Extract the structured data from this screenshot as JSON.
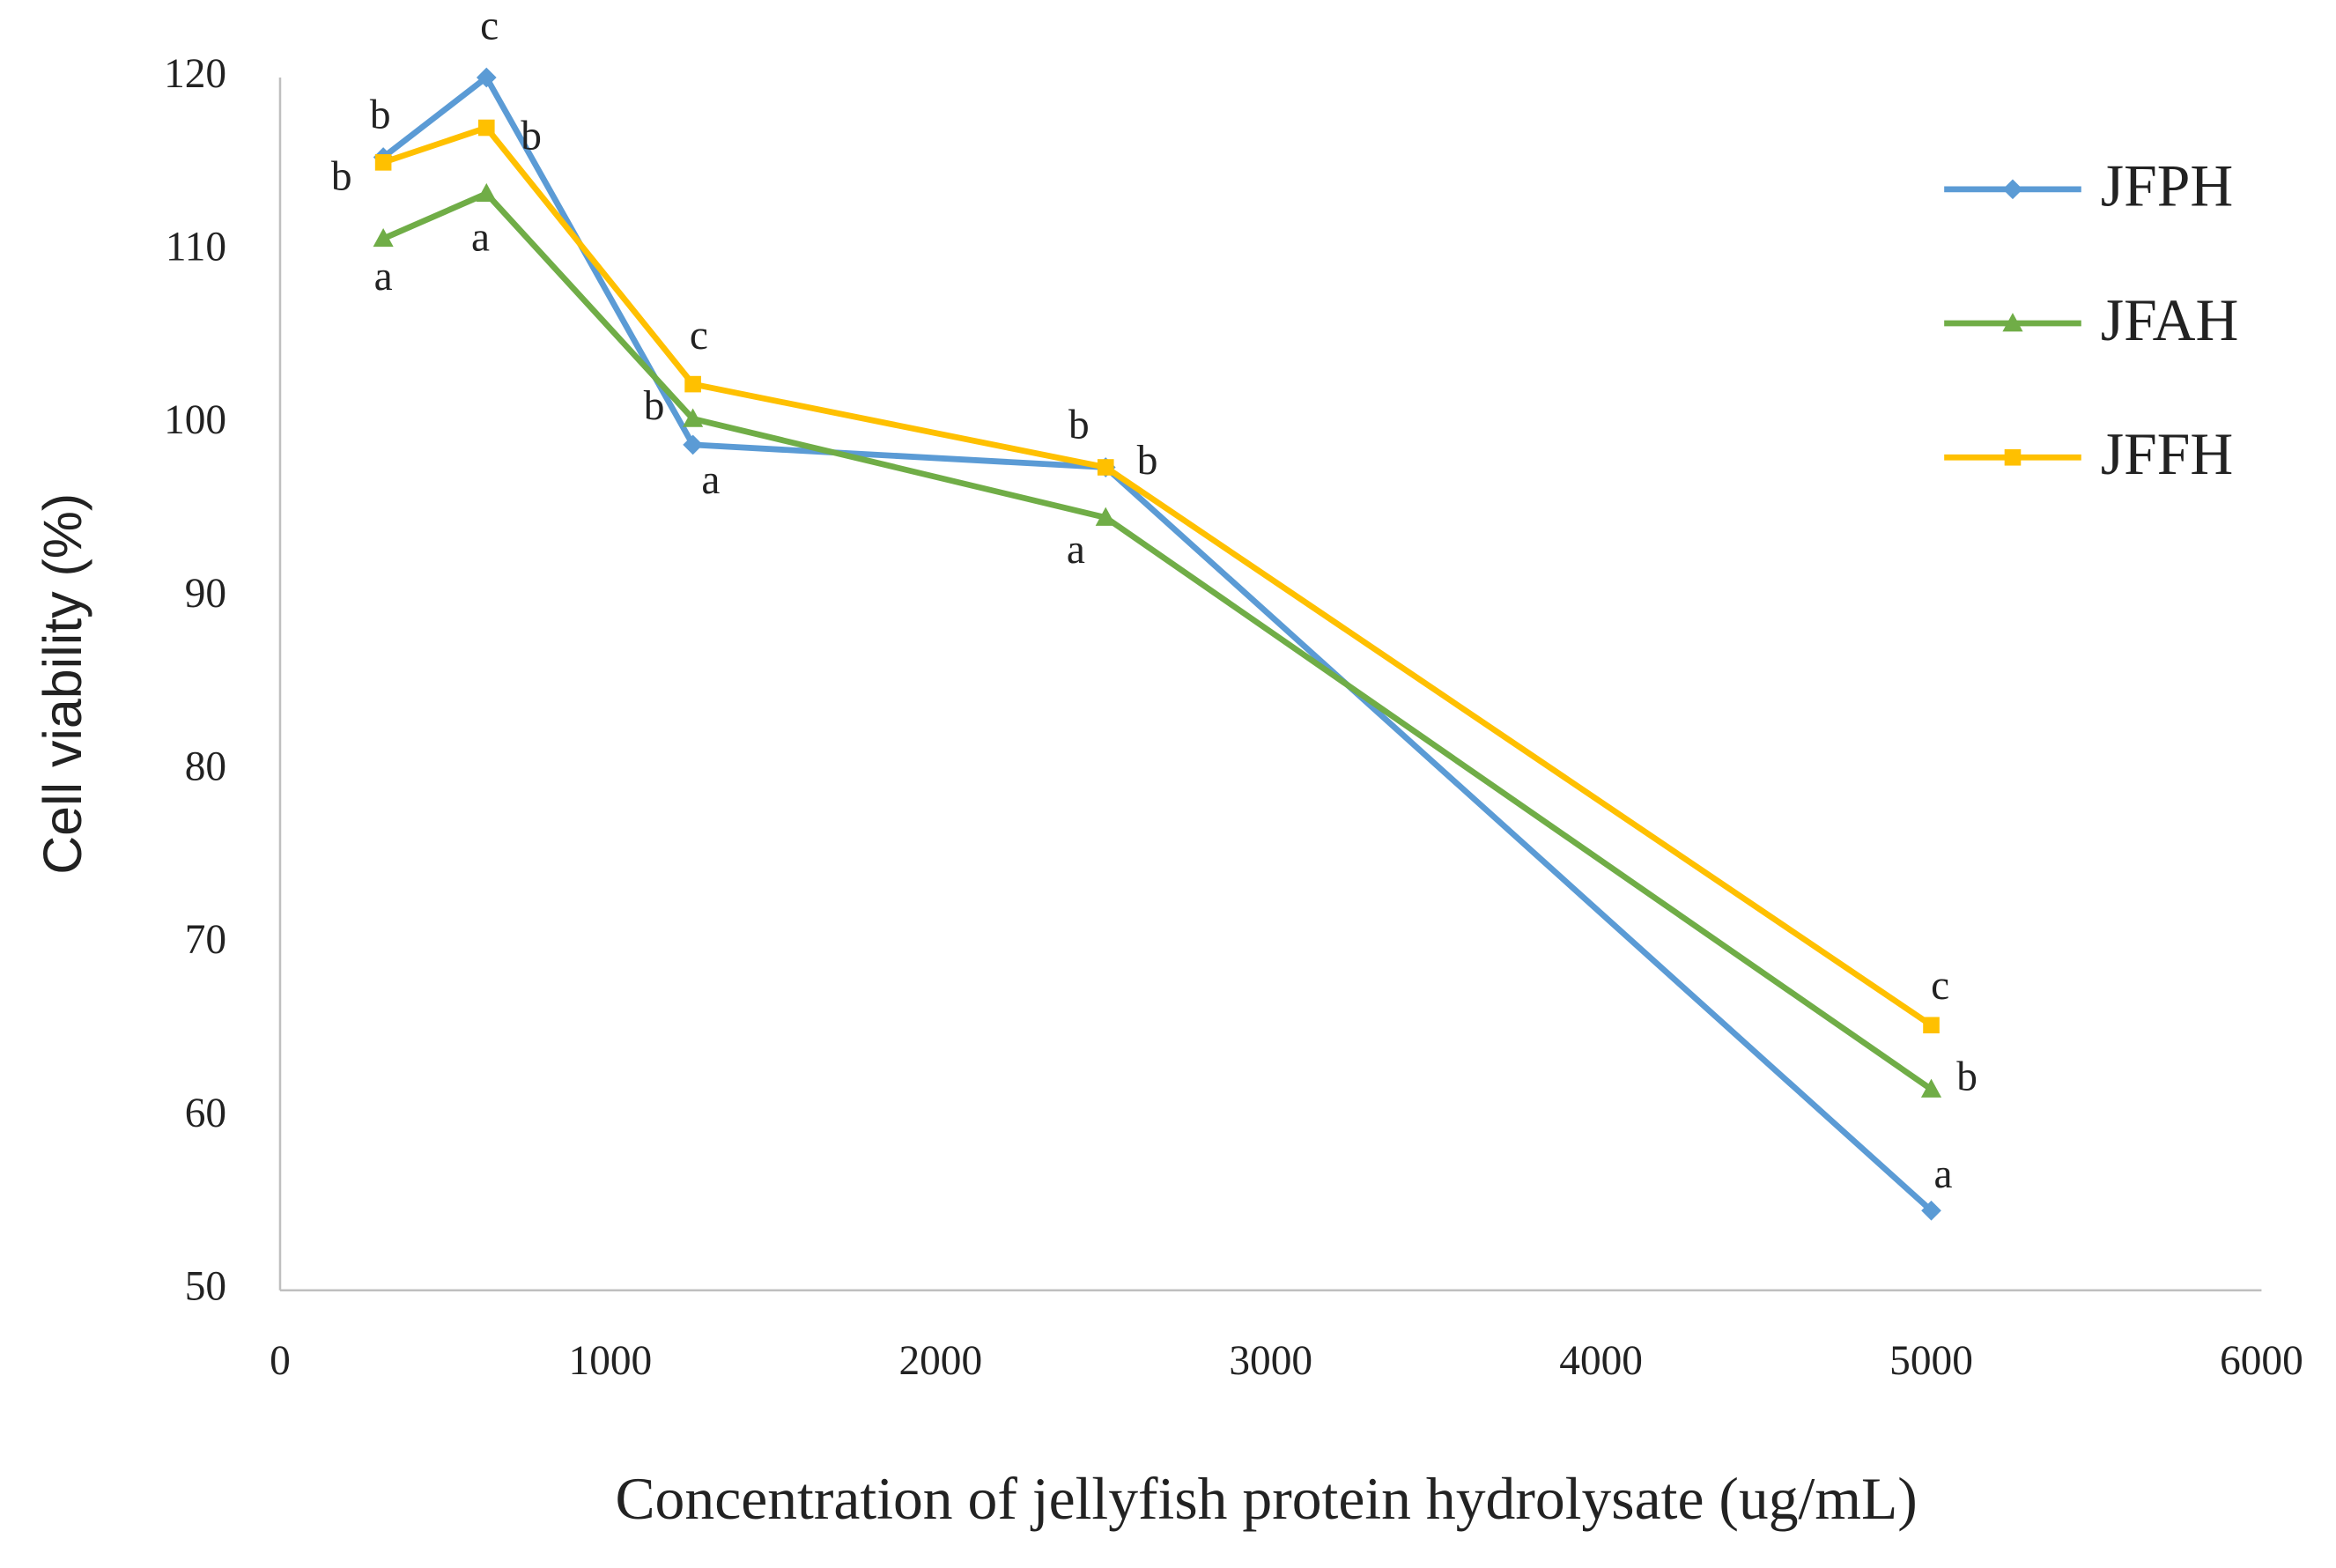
{
  "chart_data": {
    "type": "line",
    "x_label": "Concentration of jellyfish protein hydrolysate (ug/mL)",
    "y_label": "Cell viability (%)",
    "x": [
      312.5,
      625,
      1250,
      2500,
      5000
    ],
    "xlim": [
      0,
      6000
    ],
    "xticks": [
      0,
      1000,
      2000,
      3000,
      4000,
      5000,
      6000
    ],
    "ylim": [
      50,
      120
    ],
    "yticks": [
      50,
      60,
      70,
      80,
      90,
      100,
      110,
      120
    ],
    "grid": false,
    "legend": "right",
    "series": [
      {
        "name": "JFPH",
        "color": "#5b9bd5",
        "marker": "diamond",
        "values": [
          115.4,
          120,
          98.8,
          97.5,
          54.6
        ],
        "point_labels": [
          "b",
          "c",
          "a",
          "b",
          "a"
        ]
      },
      {
        "name": "JFAH",
        "color": "#70ad47",
        "marker": "triangle",
        "values": [
          110.7,
          113.3,
          100.3,
          94.6,
          61.6
        ],
        "point_labels": [
          "a",
          "a",
          "b",
          "a",
          "b"
        ]
      },
      {
        "name": "JFFH",
        "color": "#ffc000",
        "marker": "square",
        "values": [
          115.1,
          117.1,
          102.3,
          97.5,
          65.3
        ],
        "point_labels": [
          "b",
          "b",
          "c",
          "b",
          "c"
        ]
      }
    ]
  }
}
